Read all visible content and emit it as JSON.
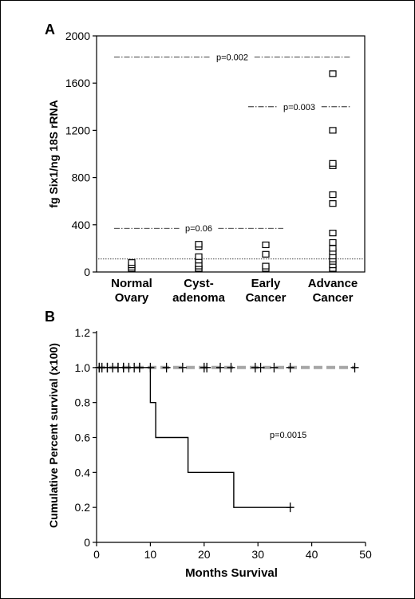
{
  "chart_data": [
    {
      "panel_label": "A",
      "type": "scatter",
      "ylabel": "fg Six1/ng 18S rRNA",
      "ylim": [
        0,
        2000
      ],
      "yticks": [
        0,
        400,
        800,
        1200,
        1600,
        2000
      ],
      "categories": [
        [
          "Normal",
          "Ovary"
        ],
        [
          "Cyst-",
          "adenoma"
        ],
        [
          "Early",
          "Cancer"
        ],
        [
          "Advance",
          "Cancer"
        ]
      ],
      "points": [
        [
          5,
          20,
          40,
          60,
          80
        ],
        [
          5,
          15,
          30,
          50,
          70,
          100,
          130,
          215,
          235
        ],
        [
          30,
          50,
          150,
          230
        ],
        [
          10,
          30,
          60,
          90,
          110,
          135,
          170,
          200,
          250,
          330,
          580,
          655,
          900,
          920,
          1200,
          1680
        ]
      ],
      "threshold_y": 110,
      "comparisons": [
        {
          "from": 0,
          "to": 3,
          "y": 1820,
          "label": "p=0.002"
        },
        {
          "from": 2,
          "to": 3,
          "y": 1400,
          "label": "p=0.003"
        },
        {
          "from": 0,
          "to": 2,
          "y": 370,
          "label": "p=0.06"
        }
      ],
      "marker": "open-square"
    },
    {
      "panel_label": "B",
      "type": "line",
      "subtype": "kaplan-meier",
      "xlabel": "Months Survival",
      "ylabel": "Cumulative Percent survival (x100)",
      "xlim": [
        0,
        50
      ],
      "ylim": [
        0,
        1.2
      ],
      "xticks": [
        0,
        10,
        20,
        30,
        40,
        50
      ],
      "yticks": [
        "0",
        "0.2",
        "0.4",
        "0.6",
        "0.8",
        "1.0",
        "1.2"
      ],
      "series": [
        {
          "style": "dashed-gray",
          "steps": [
            [
              0,
              1.0
            ],
            [
              48,
              1.0
            ]
          ],
          "censored": [
            0.5,
            2,
            4,
            5,
            7,
            8,
            10,
            13,
            16,
            20,
            20.5,
            23,
            25,
            29.5,
            30.5,
            33,
            36,
            48
          ]
        },
        {
          "style": "solid-black",
          "steps": [
            [
              0,
              1.0
            ],
            [
              10,
              1.0
            ],
            [
              10,
              0.8
            ],
            [
              11,
              0.8
            ],
            [
              11,
              0.6
            ],
            [
              17,
              0.6
            ],
            [
              17,
              0.4
            ],
            [
              25.5,
              0.4
            ],
            [
              25.5,
              0.2
            ],
            [
              36,
              0.2
            ]
          ],
          "censored": [
            0.5,
            1,
            2,
            3,
            4,
            5,
            6,
            8,
            36
          ]
        }
      ],
      "annotation": "p=0.0015"
    }
  ]
}
